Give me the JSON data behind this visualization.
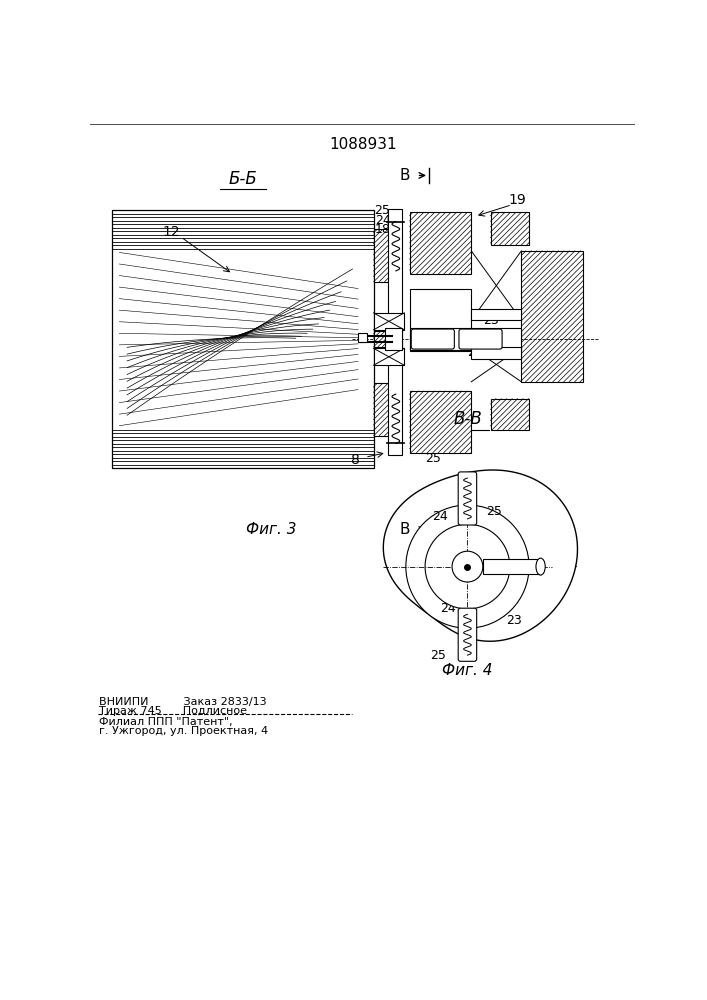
{
  "title": "1088931",
  "fig3_label": "Б-Б",
  "fig4_label": "В-В",
  "fig3_caption": "Фиг. 3",
  "fig4_caption": "Фиг. 4",
  "view_arrow_label": "В",
  "label_12": "12",
  "label_8": "8",
  "label_18": "18",
  "label_19": "19",
  "label_23": "23",
  "label_24_top": "24",
  "label_24_bot": "24",
  "label_25_top": "25",
  "label_25_bot": "25",
  "footer_line1": "ВНИИПИ          Заказ 2833/13",
  "footer_line2": "Тираж 745      Подлисное",
  "footer_line3": "Филиал ППП \"Патент\",",
  "footer_line4": "г. Ужгород, ул. Проектная, 4",
  "bg_color": "#ffffff",
  "lc": "#000000"
}
